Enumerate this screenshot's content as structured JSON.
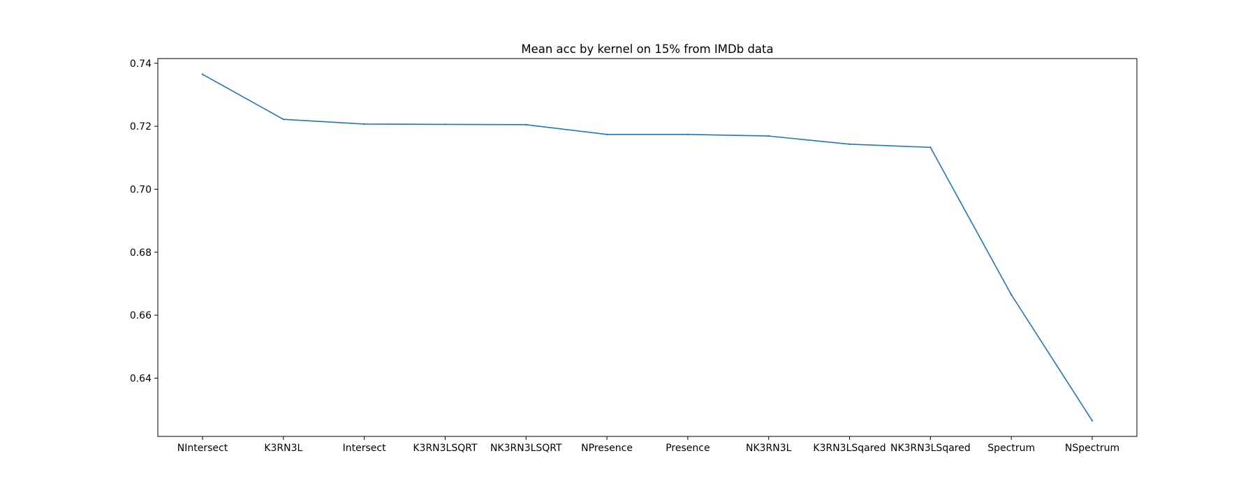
{
  "chart_data": {
    "type": "line",
    "title": "Mean acc by kernel on 15% from IMDb data",
    "xlabel": "",
    "ylabel": "",
    "categories": [
      "NIntersect",
      "K3RN3L",
      "Intersect",
      "K3RN3LSQRT",
      "NK3RN3LSQRT",
      "NPresence",
      "Presence",
      "NK3RN3L",
      "K3RN3LSqared",
      "NK3RN3LSqared",
      "Spectrum",
      "NSpectrum"
    ],
    "series": [
      {
        "values": [
          0.7365,
          0.7222,
          0.7207,
          0.7206,
          0.7205,
          0.7174,
          0.7174,
          0.7169,
          0.7143,
          0.7133,
          0.6665,
          0.6265
        ],
        "color": "#1f77b4"
      }
    ],
    "ylim": [
      0.6215,
      0.7415
    ],
    "yticks": [
      0.64,
      0.66,
      0.68,
      0.7,
      0.72,
      0.74
    ],
    "ytick_labels": [
      "0.64",
      "0.66",
      "0.68",
      "0.70",
      "0.72",
      "0.74"
    ],
    "grid": false,
    "legend": "none"
  }
}
